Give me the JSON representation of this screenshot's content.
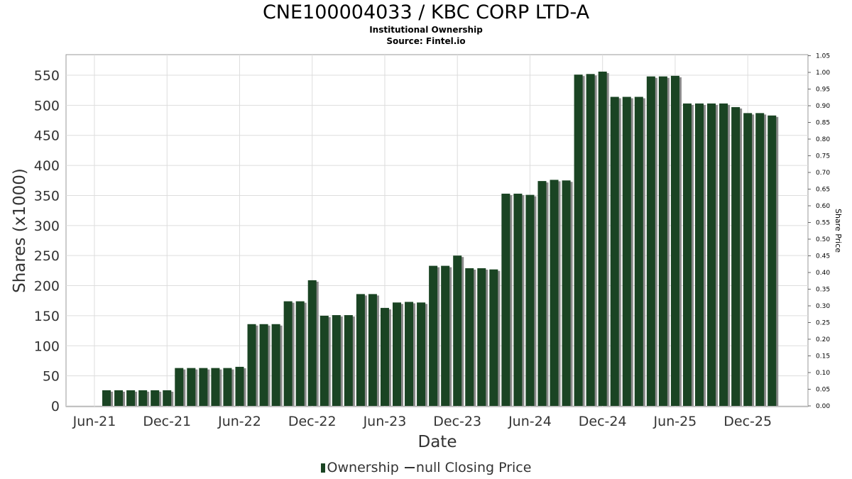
{
  "chart_data": {
    "type": "bar",
    "title": "CNE100004033 / KBC CORP LTD-A",
    "subtitle": [
      "Institutional Ownership",
      "Source: Fintel.io"
    ],
    "xlabel": "Date",
    "ylabel": "Shares (x1000)",
    "y2label": "Share Price",
    "ylim": [
      0,
      575
    ],
    "y2lim": [
      0,
      1.05
    ],
    "yticks": [
      "0",
      "50",
      "100",
      "150",
      "200",
      "250",
      "300",
      "350",
      "400",
      "450",
      "500",
      "550"
    ],
    "y2ticks": [
      "0.00",
      "0.05",
      "0.10",
      "0.15",
      "0.20",
      "0.25",
      "0.30",
      "0.35",
      "0.40",
      "0.45",
      "0.50",
      "0.55",
      "0.60",
      "0.65",
      "0.70",
      "0.75",
      "0.80",
      "0.85",
      "0.90",
      "0.95",
      "1.00",
      "1.05"
    ],
    "xticks": [
      "Jun-21",
      "Dec-21",
      "Jun-22",
      "Dec-22",
      "Jun-23",
      "Dec-23",
      "Jun-24",
      "Dec-24",
      "Jun-25",
      "Dec-25"
    ],
    "grid": true,
    "legend_position": "bottom",
    "legend": [
      "Ownership",
      "null Closing Price"
    ],
    "bar_color": "#1a4423",
    "start_month": "Jul-21",
    "series": [
      {
        "name": "Ownership",
        "values": [
          26,
          26,
          26,
          26,
          26,
          26,
          63,
          63,
          63,
          63,
          63,
          65,
          136,
          136,
          136,
          174,
          174,
          209,
          150,
          151,
          151,
          186,
          186,
          163,
          172,
          173,
          172,
          233,
          233,
          250,
          229,
          229,
          227,
          353,
          353,
          351,
          374,
          376,
          375,
          551,
          552,
          556,
          514,
          514,
          514,
          548,
          548,
          549,
          503,
          503,
          503,
          503,
          497,
          487,
          487,
          483
        ]
      }
    ]
  }
}
